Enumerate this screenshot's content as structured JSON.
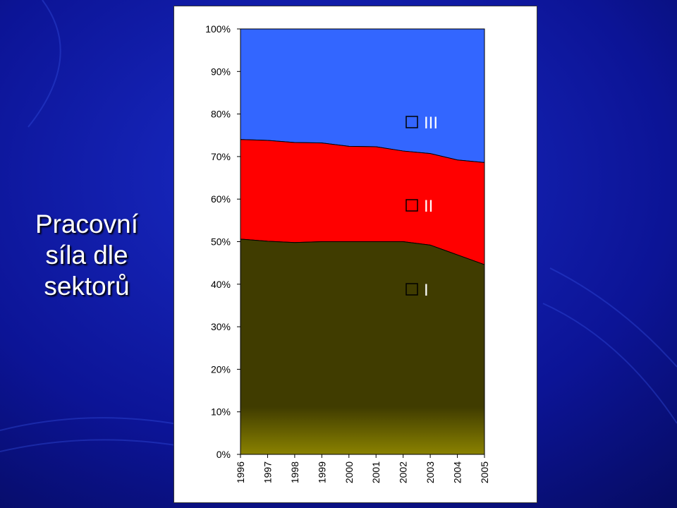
{
  "slide": {
    "title_lines": [
      "Pracovní",
      "síla dle",
      "sektorů"
    ]
  },
  "chart_data": {
    "type": "area",
    "stacked": true,
    "percent": true,
    "x": [
      "1996",
      "1997",
      "1998",
      "1999",
      "2000",
      "2001",
      "2002",
      "2003",
      "2004",
      "2005"
    ],
    "series": [
      {
        "name": "I",
        "color": "#403c00",
        "values": [
          50.6,
          50.1,
          49.8,
          50.0,
          50.0,
          50.0,
          50.0,
          49.2,
          46.9,
          44.6
        ]
      },
      {
        "name": "II",
        "color": "#ff0000",
        "values": [
          23.4,
          23.7,
          23.5,
          23.2,
          22.4,
          22.3,
          21.3,
          21.5,
          22.3,
          24.0
        ]
      },
      {
        "name": "III",
        "color": "#3366ff",
        "values": [
          26.0,
          26.2,
          26.7,
          26.8,
          27.6,
          27.7,
          28.7,
          29.3,
          30.8,
          31.4
        ]
      }
    ],
    "y_ticks": [
      "0%",
      "10%",
      "20%",
      "30%",
      "40%",
      "50%",
      "60%",
      "70%",
      "80%",
      "90%",
      "100%"
    ],
    "ylim": [
      0,
      100
    ],
    "grid": false,
    "legend": {
      "placement": "inside-right",
      "order": [
        "III",
        "II",
        "I"
      ]
    },
    "xlabel": "",
    "ylabel": ""
  }
}
